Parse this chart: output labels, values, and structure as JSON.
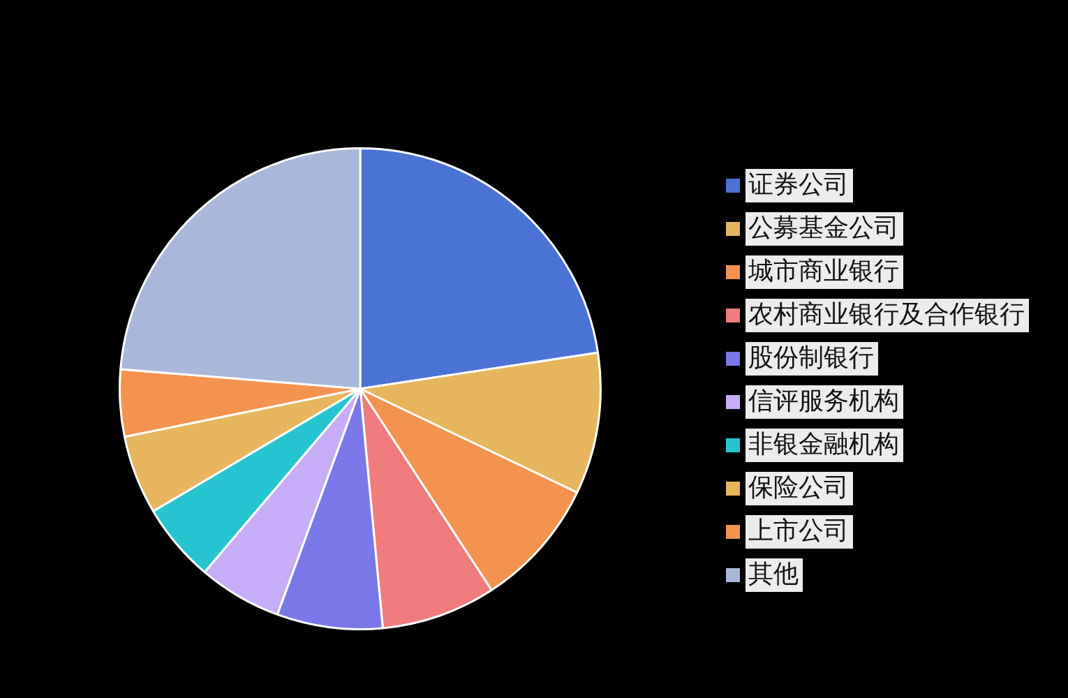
{
  "chart_data": {
    "type": "pie",
    "categories": [
      "证券公司",
      "公募基金公司",
      "城市商业银行",
      "农村商业银行及合作银行",
      "股份制银行",
      "信评服务机构",
      "非银金融机构",
      "保险公司",
      "上市公司",
      "其他"
    ],
    "values": [
      22.6,
      9.5,
      8.7,
      7.7,
      7.1,
      5.6,
      5.3,
      5.3,
      4.5,
      23.7
    ],
    "colors": [
      "#4b72d5",
      "#e6b55e",
      "#f4924f",
      "#f07b7d",
      "#7a78e8",
      "#c7adf7",
      "#26c4d0",
      "#e6b55e",
      "#f4924f",
      "#a9b7da"
    ],
    "legend": "right"
  }
}
